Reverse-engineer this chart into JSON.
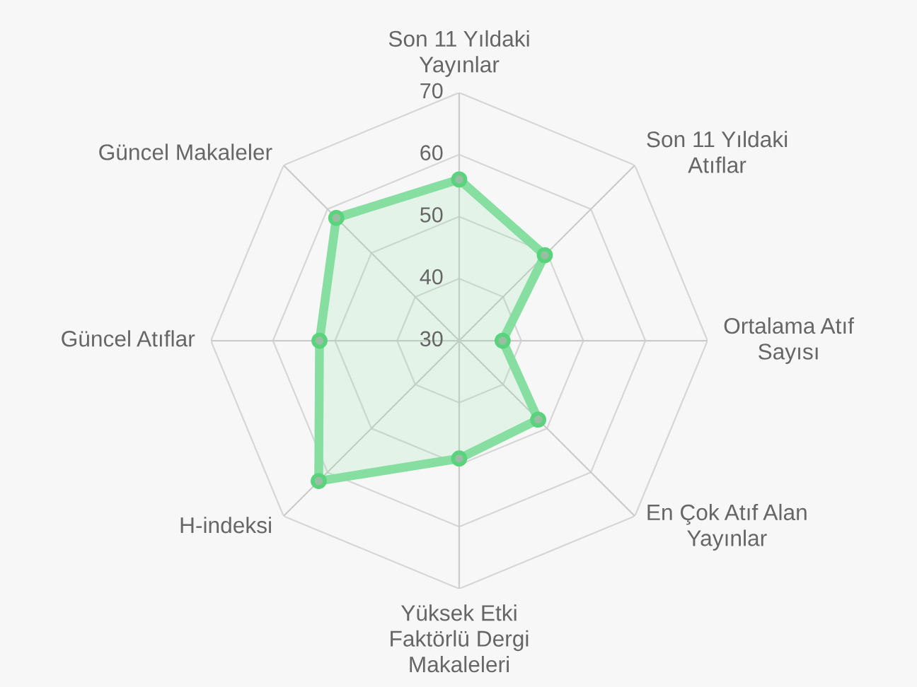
{
  "chart_data": {
    "type": "radar",
    "categories": [
      "Son 11 Yıldaki\nYayınlar",
      "Son 11 Yıldaki\nAtıflar",
      "Ortalama Atıf\nSayısı",
      "En Çok Atıf Alan\nYayınlar",
      "Yüksek Etki\nFaktörlü Dergi\nMakaleleri",
      "H-indeksi",
      "Güncel Atıflar",
      "Güncel Makaleler"
    ],
    "series": [
      {
        "color": "#86dfa0",
        "values": [
          56,
          49.5,
          37,
          48,
          49,
          62,
          52.5,
          58
        ]
      }
    ],
    "ylim": [
      30,
      70
    ],
    "yticks": [
      30,
      40,
      50,
      60,
      70
    ],
    "grid": true,
    "marker": "circle",
    "legend": false
  }
}
